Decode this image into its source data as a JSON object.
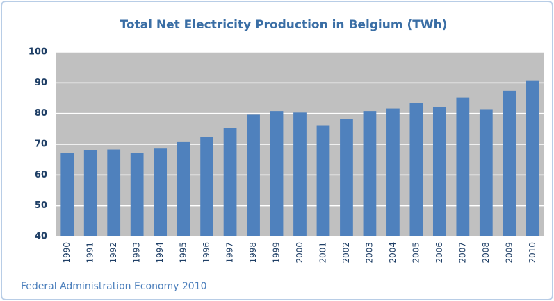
{
  "chart_data": {
    "type": "bar",
    "title": "Total Net Electricity Production in Belgium (TWh)",
    "source": "Federal Administration Economy 2010",
    "categories": [
      "1990",
      "1991",
      "1992",
      "1993",
      "1994",
      "1995",
      "1996",
      "1997",
      "1998",
      "1999",
      "2000",
      "2001",
      "2002",
      "2003",
      "2004",
      "2005",
      "2006",
      "2007",
      "2008",
      "2009",
      "2010"
    ],
    "values": [
      67.2,
      68.1,
      68.3,
      67.2,
      68.6,
      70.7,
      72.4,
      75.2,
      79.6,
      80.8,
      80.3,
      76.2,
      78.2,
      80.8,
      81.6,
      83.4,
      82.0,
      85.2,
      81.4,
      87.4,
      90.6
    ],
    "color": "#4f81bd",
    "ylim": [
      40,
      100
    ],
    "yticks": [
      40,
      50,
      60,
      70,
      80,
      90,
      100
    ],
    "grid": true
  }
}
